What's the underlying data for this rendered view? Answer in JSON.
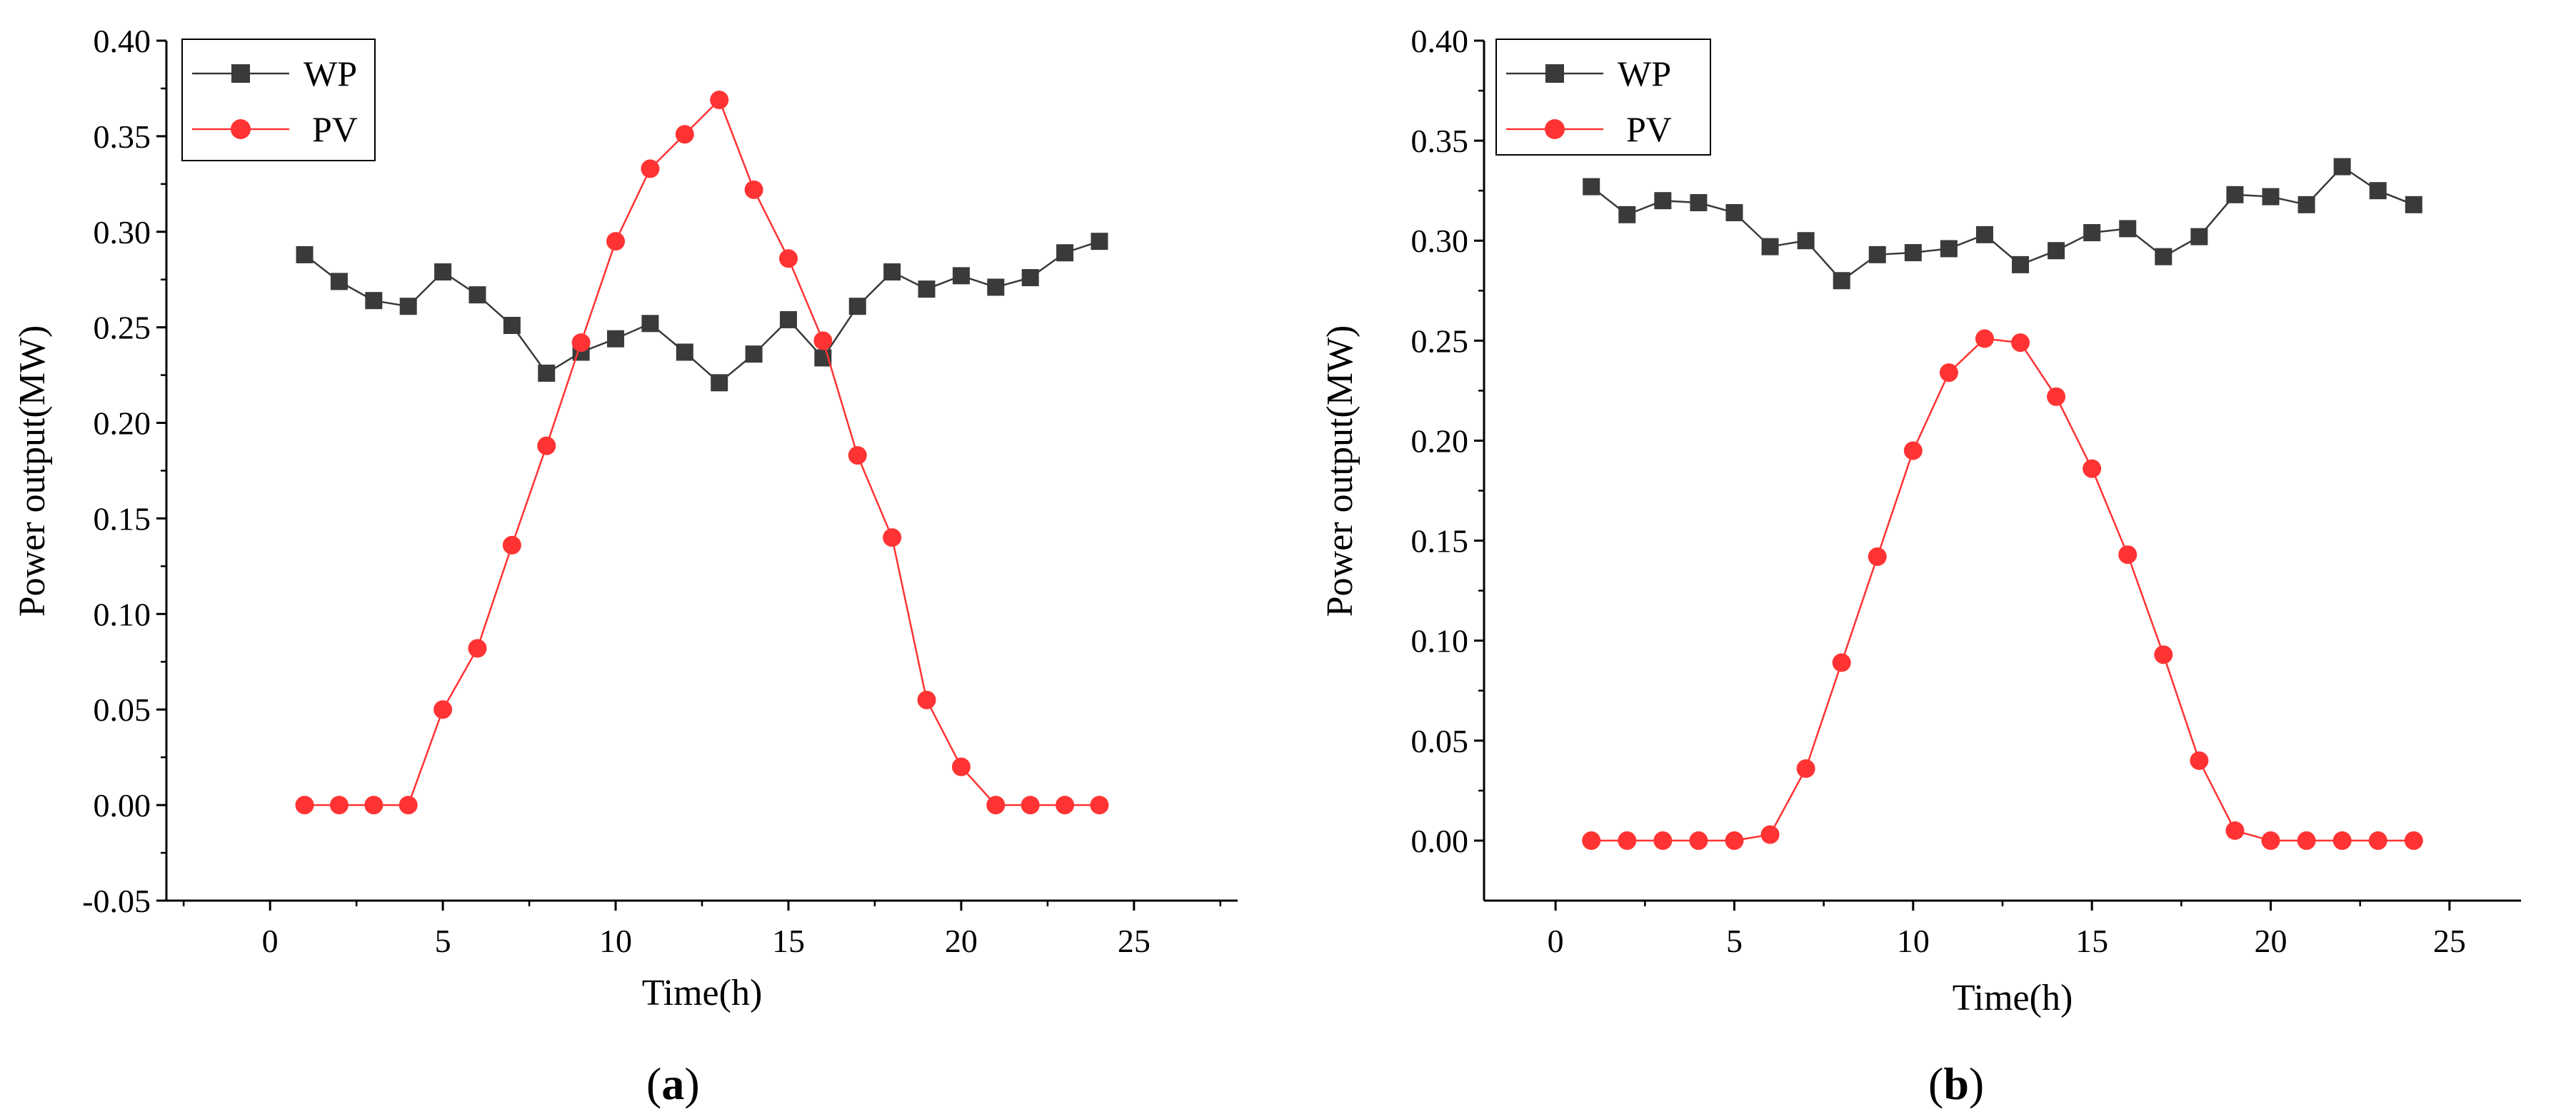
{
  "chart_data": [
    {
      "type": "line",
      "panel_label": "a",
      "title": "",
      "xlabel": "Time(h)",
      "ylabel": "Power output(MW)",
      "xlim": [
        -3,
        28
      ],
      "ylim": [
        -0.05,
        0.4
      ],
      "xticks": [
        "0",
        "5",
        "10",
        "15",
        "20",
        "25"
      ],
      "yticks": [
        "-0.05",
        "0.00",
        "0.05",
        "0.10",
        "0.15",
        "0.20",
        "0.25",
        "0.30",
        "0.35",
        "0.40"
      ],
      "legend_position": "top-left",
      "grid": false,
      "x": [
        1,
        2,
        3,
        4,
        5,
        6,
        7,
        8,
        9,
        10,
        11,
        12,
        13,
        14,
        15,
        16,
        17,
        18,
        19,
        20,
        21,
        22,
        23,
        24
      ],
      "series": [
        {
          "name": "WP",
          "color": "#3a3a3a",
          "marker": "square",
          "values": [
            0.288,
            0.274,
            0.264,
            0.261,
            0.279,
            0.267,
            0.251,
            0.226,
            0.237,
            0.244,
            0.252,
            0.237,
            0.221,
            0.236,
            0.254,
            0.234,
            0.261,
            0.279,
            0.27,
            0.277,
            0.271,
            0.276,
            0.289,
            0.295
          ]
        },
        {
          "name": "PV",
          "color": "#ff3333",
          "marker": "circle",
          "values": [
            0.0,
            0.0,
            0.0,
            0.0,
            0.05,
            0.082,
            0.136,
            0.188,
            0.242,
            0.295,
            0.333,
            0.351,
            0.369,
            0.322,
            0.286,
            0.243,
            0.183,
            0.14,
            0.055,
            0.02,
            0.0,
            0.0,
            0.0,
            0.0
          ]
        }
      ]
    },
    {
      "type": "line",
      "panel_label": "b",
      "title": "",
      "xlabel": "Time(h)",
      "ylabel": "Power output(MW)",
      "xlim": [
        -2,
        27
      ],
      "ylim": [
        -0.03,
        0.4
      ],
      "xticks": [
        "0",
        "5",
        "10",
        "15",
        "20",
        "25"
      ],
      "yticks": [
        "0.00",
        "0.05",
        "0.10",
        "0.15",
        "0.20",
        "0.25",
        "0.30",
        "0.35",
        "0.40"
      ],
      "legend_position": "top-left",
      "grid": false,
      "x": [
        1,
        2,
        3,
        4,
        5,
        6,
        7,
        8,
        9,
        10,
        11,
        12,
        13,
        14,
        15,
        16,
        17,
        18,
        19,
        20,
        21,
        22,
        23,
        24
      ],
      "series": [
        {
          "name": "WP",
          "color": "#3a3a3a",
          "marker": "square",
          "values": [
            0.327,
            0.313,
            0.32,
            0.319,
            0.314,
            0.297,
            0.3,
            0.28,
            0.293,
            0.294,
            0.296,
            0.303,
            0.288,
            0.295,
            0.304,
            0.306,
            0.292,
            0.302,
            0.323,
            0.322,
            0.318,
            0.337,
            0.325,
            0.318
          ]
        },
        {
          "name": "PV",
          "color": "#ff3333",
          "marker": "circle",
          "values": [
            0.0,
            0.0,
            0.0,
            0.0,
            0.0,
            0.003,
            0.036,
            0.089,
            0.142,
            0.195,
            0.234,
            0.251,
            0.249,
            0.222,
            0.186,
            0.143,
            0.093,
            0.04,
            0.005,
            0.0,
            0.0,
            0.0,
            0.0,
            0.0
          ]
        }
      ]
    }
  ]
}
